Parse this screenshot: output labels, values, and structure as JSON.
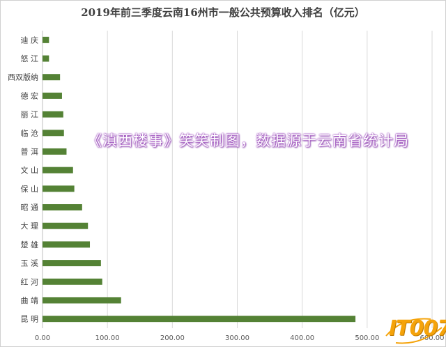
{
  "title": "2019年前三季度云南16州市一般公共预算收入排名（亿元）",
  "watermark": "《滇西楼事》笑笑制图，数据源于云南省统计局",
  "logo": "IT007",
  "colors": {
    "bar": "#548235",
    "grid": "#d9d9d9",
    "text": "#595959"
  },
  "chart_data": {
    "type": "bar",
    "orientation": "horizontal",
    "title": "2019年前三季度云南16州市一般公共预算收入排名（亿元）",
    "categories": [
      "迪 庆",
      "怒 江",
      "西双版纳",
      "德 宏",
      "丽 江",
      "临 沧",
      "普 洱",
      "文 山",
      "保 山",
      "昭 通",
      "大 理",
      "楚 雄",
      "玉 溪",
      "红 河",
      "曲 靖",
      "昆 明"
    ],
    "values": [
      10,
      10,
      27,
      30,
      32,
      33,
      37,
      47,
      49,
      61,
      70,
      73,
      90,
      92,
      121,
      482
    ],
    "xlim": [
      0,
      600
    ],
    "xticks": [
      "0.00",
      "100.00",
      "200.00",
      "300.00",
      "400.00",
      "500.00",
      "600.00"
    ],
    "xtick_values": [
      0,
      100,
      200,
      300,
      400,
      500,
      600
    ],
    "grid": true,
    "legend": "none"
  }
}
